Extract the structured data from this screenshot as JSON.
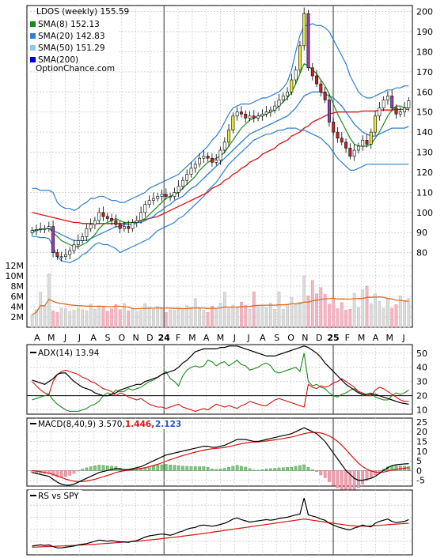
{
  "chart_data": {
    "type": "candlestick",
    "title": "LDOS (weekly) 155.59",
    "watermark": "OptionChance.com",
    "months": [
      "A",
      "M",
      "J",
      "J",
      "A",
      "S",
      "O",
      "N",
      "D",
      "24",
      "F",
      "M",
      "A",
      "M",
      "J",
      "J",
      "A",
      "S",
      "O",
      "N",
      "D",
      "25",
      "F",
      "M",
      "A",
      "M",
      "J"
    ],
    "legend": [
      {
        "label": "SMA(8) 152.13",
        "color": "#1a8a1a"
      },
      {
        "label": "SMA(20) 142.83",
        "color": "#2f7fd0"
      },
      {
        "label": "SMA(50) 151.29",
        "color": "#8ec8ee"
      },
      {
        "label": "SMA(200)",
        "color": "#0000cc"
      }
    ],
    "price_axis": {
      "ticks": [
        80,
        90,
        100,
        110,
        120,
        130,
        140,
        150,
        160,
        170,
        180,
        190,
        200
      ],
      "ylim": [
        72,
        203
      ]
    },
    "volume_axis": {
      "ticks": [
        "2M",
        "4M",
        "6M",
        "8M",
        "10M",
        "12M"
      ],
      "ylim": [
        0,
        12
      ]
    },
    "close": [
      91,
      91.5,
      92,
      92,
      93,
      80,
      78,
      78,
      79,
      81,
      84,
      86,
      88,
      92,
      94,
      96,
      100,
      98,
      97,
      96,
      94,
      92,
      93,
      92,
      95,
      96,
      100,
      104,
      106,
      107,
      108,
      109,
      108,
      108,
      110,
      113,
      116,
      119,
      122,
      124,
      127,
      128,
      127,
      125,
      126,
      131,
      135,
      141,
      148,
      150,
      149,
      147,
      148,
      147,
      148,
      149,
      150,
      151,
      153,
      156,
      158,
      160,
      166,
      171,
      183,
      199,
      172,
      168,
      164,
      160,
      156,
      145,
      140,
      137,
      135,
      132,
      128,
      131,
      133,
      136,
      134,
      140,
      148,
      152,
      156,
      158,
      152,
      149,
      150,
      152,
      155.59
    ],
    "sma8": [
      91,
      91.3,
      91.6,
      91.8,
      92.1,
      90,
      88,
      86,
      85,
      84,
      83,
      83,
      84,
      85,
      87,
      89,
      92,
      94,
      95,
      96,
      97,
      96,
      95,
      95,
      95,
      95,
      96,
      97,
      99,
      101,
      103,
      105,
      107,
      108,
      109,
      110,
      112,
      114,
      116,
      118,
      121,
      123,
      125,
      126,
      127,
      128,
      130,
      133,
      136,
      139,
      142,
      144,
      146,
      147,
      148,
      148,
      149,
      150,
      151,
      153,
      155,
      157,
      160,
      164,
      169,
      174,
      173,
      171,
      169,
      166,
      163,
      159,
      154,
      149,
      145,
      141,
      137,
      134,
      133,
      133,
      133,
      134,
      137,
      140,
      144,
      148,
      151,
      153,
      153,
      152,
      152.13
    ],
    "sma20": [
      90,
      91,
      91.5,
      92,
      92,
      91,
      90,
      89,
      88,
      87,
      86,
      86,
      86,
      86,
      87,
      88,
      89,
      90,
      91,
      92,
      93,
      93,
      94,
      94,
      94,
      95,
      95,
      96,
      97,
      98,
      100,
      101,
      103,
      104,
      106,
      107,
      108,
      110,
      112,
      113,
      115,
      117,
      119,
      121,
      123,
      125,
      127,
      129,
      131,
      133,
      135,
      137,
      139,
      140,
      141,
      142,
      143,
      144,
      145,
      146,
      147,
      148,
      150,
      152,
      155,
      158,
      159,
      160,
      160,
      160,
      159,
      158,
      157,
      155,
      153,
      150,
      147,
      144,
      142,
      140,
      139,
      138,
      138,
      139,
      140,
      141,
      142,
      142,
      142,
      142,
      142.83
    ],
    "sma50": [
      100,
      99.5,
      99,
      98.5,
      98,
      97.5,
      97,
      96.5,
      96,
      95.5,
      95,
      95,
      94.5,
      94.5,
      94.5,
      94.5,
      94.5,
      94.5,
      94.5,
      94.5,
      94.5,
      94.5,
      94.5,
      95,
      95,
      95.5,
      96,
      96.5,
      97,
      97.5,
      98,
      99,
      100,
      101,
      102,
      103,
      104,
      105,
      106,
      107,
      108,
      109,
      110,
      112,
      113,
      114,
      116,
      117,
      119,
      120,
      122,
      123,
      125,
      126,
      127,
      129,
      130,
      131,
      132,
      134,
      135,
      136,
      138,
      139,
      140,
      142,
      143,
      145,
      146,
      147,
      148,
      149,
      149.5,
      150,
      150,
      150,
      150,
      150,
      150,
      150.5,
      150.5,
      150.5,
      150.5,
      151,
      151,
      151,
      151,
      151.2,
      151.3,
      151.3,
      151.29
    ],
    "bb_upper": [
      112,
      112,
      111,
      111,
      111,
      110,
      105,
      103,
      102,
      102,
      101,
      102,
      104,
      105,
      107,
      107,
      108,
      108,
      107,
      106,
      106,
      105,
      105,
      106,
      107,
      108,
      109,
      110,
      112,
      113,
      114,
      115,
      116,
      117,
      118,
      119,
      121,
      123,
      125,
      127,
      129,
      131,
      133,
      136,
      138,
      141,
      145,
      149,
      152,
      153,
      154,
      154,
      154,
      155,
      156,
      157,
      157,
      158,
      159,
      160,
      162,
      165,
      171,
      180,
      188,
      193,
      193,
      194,
      193,
      193,
      192,
      190,
      186,
      182,
      178,
      174,
      168,
      164,
      160,
      158,
      157,
      157,
      158,
      159,
      160,
      161,
      161,
      162,
      162,
      163,
      163
    ],
    "bb_lower": [
      88,
      88,
      87.5,
      87.5,
      87,
      83,
      78,
      76,
      75.5,
      75,
      76,
      77,
      79,
      80,
      82,
      84,
      85,
      84,
      84,
      83,
      82,
      80,
      81,
      82,
      83,
      84,
      85,
      86,
      87,
      89,
      91,
      92,
      93,
      94,
      95,
      97,
      98,
      100,
      102,
      104,
      106,
      108,
      111,
      113,
      115,
      118,
      121,
      124,
      126,
      128,
      130,
      132,
      134,
      136,
      137,
      138,
      139,
      139,
      140,
      141,
      141,
      142,
      142,
      142,
      141,
      141,
      140,
      139,
      138,
      137,
      135,
      133,
      130,
      127,
      125,
      123,
      121,
      121,
      122,
      123,
      124,
      124,
      124,
      124,
      124,
      124,
      124,
      124,
      124,
      124,
      124
    ],
    "volume": [
      2.4,
      3.4,
      6.8,
      4.1,
      10.4,
      3.2,
      2.9,
      3.7,
      3.6,
      3.1,
      3.3,
      3.7,
      3.4,
      3.2,
      4.5,
      3.5,
      4.2,
      3.9,
      3.1,
      3.6,
      4.4,
      3.4,
      4.6,
      3.2,
      3.7,
      3.1,
      3.3,
      4.6,
      3.8,
      3.5,
      4.1,
      3.6,
      2.9,
      3.4,
      3.3,
      3.5,
      3.4,
      4.2,
      3.9,
      5.6,
      3.6,
      3.3,
      2.9,
      4.1,
      3.5,
      4.7,
      6.8,
      3.6,
      4.3,
      3.8,
      4.9,
      4.3,
      3.5,
      6.9,
      4.0,
      4.1,
      3.8,
      4.7,
      3.5,
      6.9,
      3.5,
      4.4,
      5.8,
      4.4,
      4.9,
      10.0,
      6.1,
      9.1,
      6.5,
      7.7,
      6.4,
      4.5,
      5.5,
      3.6,
      4.8,
      3.3,
      3.5,
      6.6,
      3.8,
      7.3,
      8.0,
      4.6,
      6.5,
      5.0,
      3.7,
      5.6,
      3.7,
      4.4,
      6.1,
      5.2,
      5.6
    ],
    "volume_avg_color": "#e06a1a",
    "adx": {
      "label": "ADX(14) 13.94",
      "ticks": [
        10,
        20,
        30,
        40,
        50
      ],
      "ylim": [
        7,
        56
      ],
      "adx": [
        31,
        30,
        29,
        28,
        30,
        32,
        35,
        36,
        36,
        33,
        30,
        28,
        26,
        25,
        24,
        22,
        21,
        20,
        20,
        21,
        22,
        24,
        25,
        26,
        27,
        28,
        28,
        30,
        31,
        32,
        33,
        35,
        36,
        37,
        38,
        40,
        43,
        45,
        48,
        51,
        52,
        53,
        53,
        53,
        53,
        54,
        54,
        55,
        55,
        55,
        54,
        53,
        52,
        51,
        50,
        49,
        48,
        48,
        48,
        49,
        50,
        51,
        52,
        53,
        54,
        55,
        54,
        52,
        50,
        47,
        43,
        40,
        37,
        34,
        31,
        28,
        26,
        24,
        22,
        21,
        21,
        21,
        21,
        20,
        19,
        18,
        17,
        16,
        15,
        14.5,
        13.94
      ],
      "plus_di": [
        17,
        18,
        19,
        20,
        21,
        17,
        14,
        12,
        10,
        9,
        9,
        9,
        10,
        11,
        13,
        14,
        16,
        20,
        22,
        21,
        24,
        23,
        23,
        25,
        24,
        25,
        26,
        28,
        30,
        31,
        33,
        35,
        37,
        32,
        30,
        27,
        34,
        38,
        40,
        41,
        40,
        41,
        45,
        44,
        41,
        43,
        44,
        41,
        43,
        45,
        42,
        41,
        38,
        39,
        40,
        42,
        43,
        41,
        37,
        36,
        37,
        38,
        39,
        40,
        37,
        50,
        30,
        27,
        28,
        26,
        25,
        22,
        20,
        19,
        21,
        22,
        24,
        25,
        23,
        20,
        21,
        22,
        19,
        18,
        17,
        17,
        20,
        22,
        21,
        22,
        24
      ],
      "minus_di": [
        30,
        27,
        24,
        22,
        21,
        30,
        35,
        37,
        38,
        37,
        36,
        35,
        33,
        32,
        30,
        29,
        27,
        25,
        24,
        23,
        20,
        22,
        21,
        19,
        18,
        17,
        18,
        16,
        14,
        13,
        12,
        12,
        11,
        12,
        13,
        14,
        12,
        11,
        10,
        9,
        10,
        11,
        10,
        12,
        14,
        13,
        12,
        13,
        12,
        11,
        13,
        14,
        16,
        15,
        14,
        13,
        13,
        15,
        17,
        18,
        17,
        16,
        15,
        14,
        13,
        12,
        28,
        26,
        25,
        27,
        26,
        27,
        29,
        30,
        32,
        30,
        28,
        26,
        23,
        22,
        20,
        20,
        24,
        26,
        25,
        23,
        21,
        19,
        17,
        16,
        16
      ]
    },
    "macd": {
      "label": "MACD(8,40,9) 3.570,",
      "signal_label": "1.446,",
      "hist_label": "2.123",
      "ticks": [
        -5,
        0,
        5,
        10,
        15,
        20,
        25
      ],
      "ylim": [
        -8,
        27
      ],
      "macd": [
        -1,
        -1.5,
        -2,
        -2.5,
        -3,
        -4.5,
        -6,
        -7,
        -7.5,
        -7.5,
        -7,
        -6,
        -5,
        -4,
        -3,
        -2,
        -1,
        -0.5,
        0,
        0.5,
        1,
        0.8,
        0.5,
        0.5,
        1,
        1.5,
        2,
        3,
        4,
        5,
        6,
        7,
        8,
        8.5,
        9,
        9.5,
        10,
        10.5,
        11,
        11.5,
        12,
        12.5,
        12.5,
        12,
        12,
        12.5,
        13,
        14,
        15,
        16,
        16,
        16,
        15.5,
        15,
        15,
        15.5,
        16,
        16.5,
        17,
        17.5,
        18,
        18.5,
        19,
        20,
        21,
        22,
        21,
        20,
        19,
        17,
        15,
        12,
        9,
        6,
        3,
        0,
        -2,
        -4,
        -5,
        -5,
        -4.5,
        -4,
        -3,
        -1.5,
        0,
        1.5,
        2.5,
        3,
        3.2,
        3.4,
        3.57
      ],
      "signal": [
        0,
        -0.3,
        -0.6,
        -1,
        -1.4,
        -2,
        -2.8,
        -3.6,
        -4.4,
        -5,
        -5.5,
        -5.7,
        -5.7,
        -5.4,
        -5,
        -4.5,
        -3.8,
        -3.2,
        -2.5,
        -1.8,
        -1,
        -0.5,
        -0.1,
        0.2,
        0.5,
        0.8,
        1.1,
        1.5,
        2,
        2.6,
        3.2,
        4,
        4.8,
        5.6,
        6.3,
        7,
        7.7,
        8.3,
        8.9,
        9.5,
        10,
        10.5,
        10.9,
        11.2,
        11.4,
        11.6,
        11.9,
        12.3,
        12.8,
        13.3,
        13.8,
        14.2,
        14.5,
        14.7,
        14.8,
        15,
        15.2,
        15.5,
        15.8,
        16.1,
        16.5,
        16.9,
        17.3,
        17.8,
        18.4,
        19,
        19.4,
        19.6,
        19.6,
        19.3,
        18.7,
        17.8,
        16.6,
        15,
        13,
        10.8,
        8.4,
        6,
        3.8,
        2,
        0.7,
        -0.3,
        -0.8,
        -1,
        -0.8,
        -0.3,
        0.2,
        0.6,
        0.9,
        1.2,
        1.446
      ]
    },
    "rs": {
      "label": "RS vs SPY",
      "ylim": [
        0,
        100
      ],
      "rs": [
        12,
        13,
        14,
        13,
        14,
        11,
        9,
        9,
        10,
        11,
        12,
        14,
        15,
        16,
        18,
        20,
        22,
        21,
        20,
        21,
        20,
        19,
        19,
        18,
        20,
        21,
        24,
        27,
        29,
        30,
        31,
        32,
        31,
        30,
        32,
        35,
        37,
        40,
        42,
        43,
        46,
        47,
        46,
        45,
        46,
        48,
        50,
        53,
        57,
        59,
        56,
        54,
        52,
        53,
        54,
        55,
        56,
        55,
        56,
        58,
        59,
        60,
        62,
        64,
        65,
        92,
        64,
        62,
        60,
        57,
        55,
        50,
        47,
        44,
        42,
        40,
        39,
        42,
        44,
        47,
        45,
        44,
        50,
        53,
        55,
        57,
        53,
        51,
        52,
        53,
        56
      ],
      "rs_avg": [
        10,
        10.3,
        10.6,
        10.9,
        11.2,
        11.5,
        11.8,
        12.1,
        12.4,
        12.7,
        13,
        13.4,
        13.8,
        14.2,
        14.6,
        15,
        15.5,
        16,
        16.5,
        17,
        17.5,
        18,
        18.5,
        19,
        19.5,
        20,
        20.7,
        21.4,
        22.1,
        22.8,
        23.5,
        24.3,
        25.1,
        25.9,
        26.7,
        27.5,
        28.4,
        29.3,
        30.2,
        31.1,
        32,
        33,
        34,
        35,
        36,
        37,
        38,
        39,
        40,
        41,
        42,
        43,
        44,
        45,
        46,
        47,
        48,
        49,
        50,
        51,
        52,
        53,
        54,
        55,
        56,
        57,
        56,
        55,
        54,
        53,
        52,
        51,
        50,
        49,
        48,
        47,
        46,
        45.5,
        45,
        45,
        45,
        45.5,
        46,
        46.5,
        47,
        47.5,
        48,
        48.5,
        49,
        49.5,
        50
      ]
    }
  }
}
